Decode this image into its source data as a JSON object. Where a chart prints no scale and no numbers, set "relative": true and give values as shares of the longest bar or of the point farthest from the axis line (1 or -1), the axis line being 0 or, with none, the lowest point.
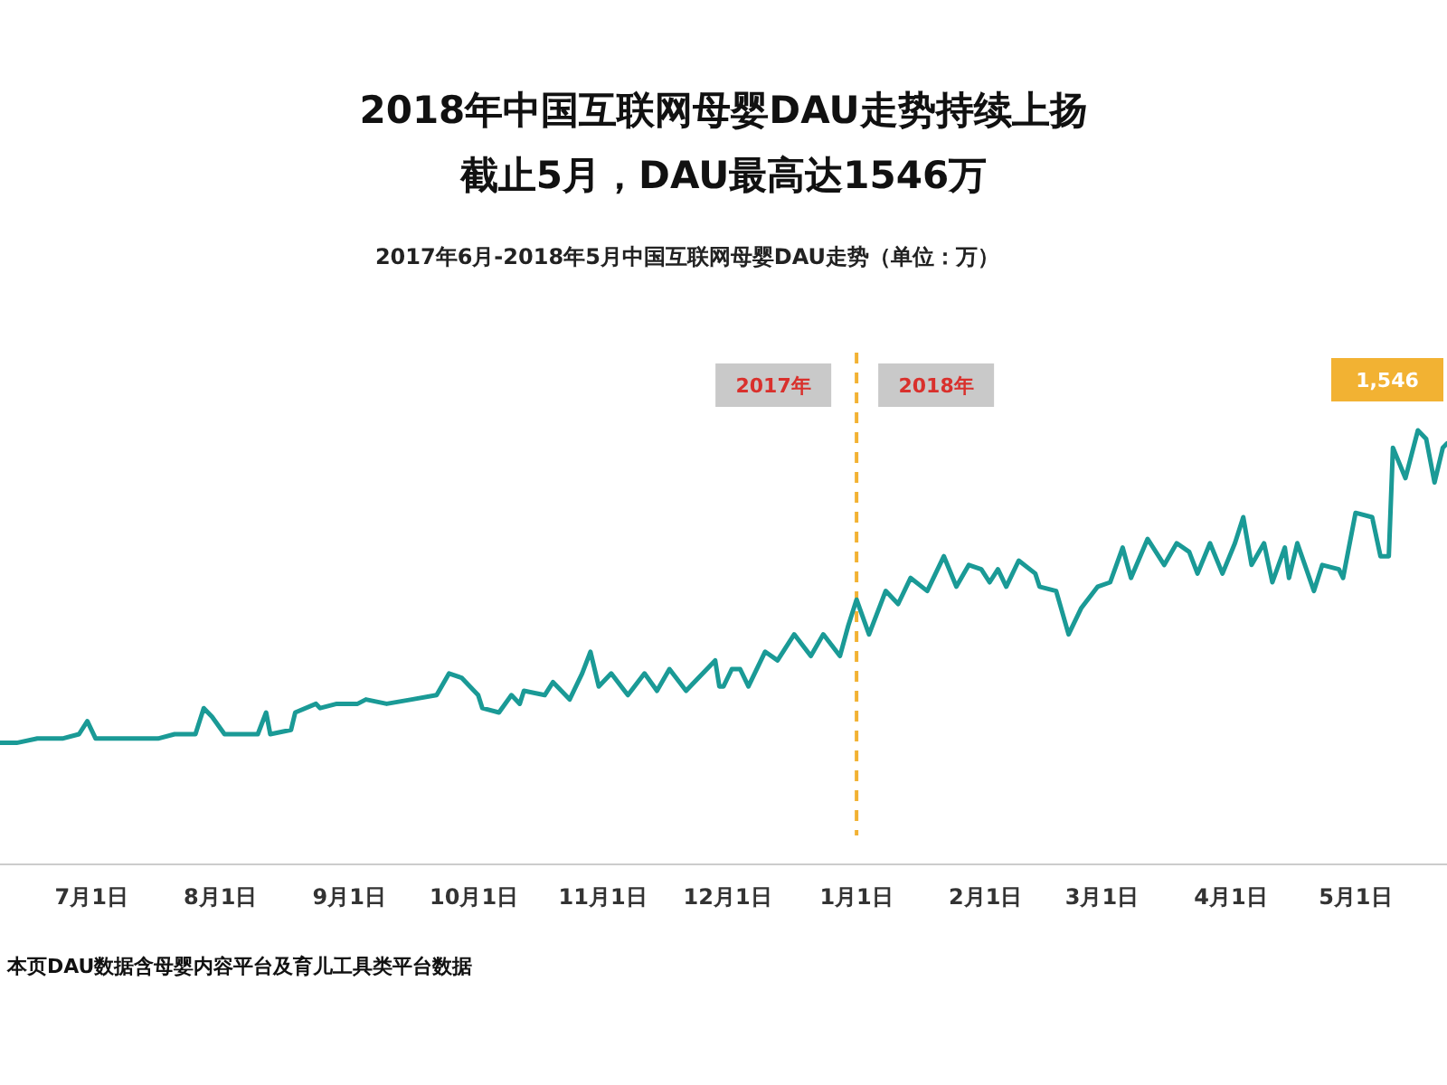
{
  "chart_data": {
    "type": "line",
    "relative": true,
    "title": "2018年中国互联网母婴DAU走势持续上扬",
    "subtitle": "截止5月，DAU最高达1546万",
    "x": [
      "2017-06-09",
      "2017-06-13",
      "2017-06-18",
      "2017-06-24",
      "2017-06-28",
      "2017-06-30",
      "2017-07-02",
      "2017-07-08",
      "2017-07-17",
      "2017-07-21",
      "2017-07-26",
      "2017-07-28",
      "2017-07-30",
      "2017-08-02",
      "2017-08-06",
      "2017-08-10",
      "2017-08-12",
      "2017-08-13",
      "2017-08-18",
      "2017-08-19",
      "2017-08-24",
      "2017-08-25",
      "2017-08-29",
      "2017-09-03",
      "2017-09-05",
      "2017-09-10",
      "2017-09-16",
      "2017-09-22",
      "2017-09-25",
      "2017-09-28",
      "2017-10-02",
      "2017-10-03",
      "2017-10-07",
      "2017-10-10",
      "2017-10-12",
      "2017-10-13",
      "2017-10-18",
      "2017-10-20",
      "2017-10-24",
      "2017-10-27",
      "2017-10-29",
      "2017-10-31",
      "2017-11-03",
      "2017-11-07",
      "2017-11-11",
      "2017-11-14",
      "2017-11-17",
      "2017-11-21",
      "2017-11-28",
      "2017-11-29",
      "2017-11-30",
      "2017-12-02",
      "2017-12-04",
      "2017-12-06",
      "2017-12-10",
      "2017-12-13",
      "2017-12-17",
      "2017-12-21",
      "2017-12-24",
      "2017-12-28",
      "2017-12-30",
      "2018-01-01",
      "2018-01-04",
      "2018-01-08",
      "2018-01-11",
      "2018-01-14",
      "2018-01-18",
      "2018-01-22",
      "2018-01-25",
      "2018-01-28",
      "2018-01-31",
      "2018-02-02",
      "2018-02-04",
      "2018-02-06",
      "2018-02-09",
      "2018-02-13",
      "2018-02-14",
      "2018-02-18",
      "2018-02-21",
      "2018-02-24",
      "2018-02-28",
      "2018-03-03",
      "2018-03-06",
      "2018-03-08",
      "2018-03-12",
      "2018-03-16",
      "2018-03-19",
      "2018-03-22",
      "2018-03-24",
      "2018-03-27",
      "2018-03-30",
      "2018-04-02",
      "2018-04-04",
      "2018-04-06",
      "2018-04-09",
      "2018-04-11",
      "2018-04-14",
      "2018-04-15",
      "2018-04-17",
      "2018-04-21",
      "2018-04-23",
      "2018-04-27",
      "2018-04-28",
      "2018-05-01",
      "2018-05-05",
      "2018-05-07",
      "2018-05-09",
      "2018-05-10",
      "2018-05-13",
      "2018-05-16",
      "2018-05-18",
      "2018-05-20",
      "2018-05-22",
      "2018-05-23"
    ],
    "series": [
      {
        "color": "#1a9a96",
        "values": [
          0.28,
          0.28,
          0.29,
          0.29,
          0.3,
          0.33,
          0.29,
          0.29,
          0.29,
          0.3,
          0.3,
          0.36,
          0.34,
          0.3,
          0.3,
          0.3,
          0.35,
          0.3,
          0.31,
          0.35,
          0.37,
          0.36,
          0.37,
          0.37,
          0.38,
          0.37,
          0.38,
          0.39,
          0.44,
          0.43,
          0.39,
          0.36,
          0.35,
          0.39,
          0.37,
          0.4,
          0.39,
          0.42,
          0.38,
          0.44,
          0.49,
          0.41,
          0.44,
          0.39,
          0.44,
          0.4,
          0.45,
          0.4,
          0.47,
          0.41,
          0.41,
          0.45,
          0.45,
          0.41,
          0.49,
          0.47,
          0.53,
          0.48,
          0.53,
          0.48,
          0.55,
          0.61,
          0.53,
          0.63,
          0.6,
          0.66,
          0.63,
          0.71,
          0.64,
          0.69,
          0.68,
          0.65,
          0.68,
          0.64,
          0.7,
          0.67,
          0.64,
          0.63,
          0.53,
          0.59,
          0.64,
          0.65,
          0.73,
          0.66,
          0.75,
          0.69,
          0.74,
          0.72,
          0.67,
          0.74,
          0.67,
          0.74,
          0.8,
          0.69,
          0.74,
          0.65,
          0.73,
          0.66,
          0.74,
          0.63,
          0.69,
          0.68,
          0.66,
          0.81,
          0.8,
          0.71,
          0.71,
          0.96,
          0.89,
          1.0,
          0.98,
          0.88,
          0.96,
          0.97
        ]
      }
    ],
    "xlim": [
      "2017-06-09",
      "2018-05-23"
    ],
    "xticks": [
      {
        "value": "2017-07-01",
        "label": "7月1日"
      },
      {
        "value": "2017-08-01",
        "label": "8月1日"
      },
      {
        "value": "2017-09-01",
        "label": "9月1日"
      },
      {
        "value": "2017-10-01",
        "label": "10月1日"
      },
      {
        "value": "2017-11-01",
        "label": "11月1日"
      },
      {
        "value": "2017-12-01",
        "label": "12月1日"
      },
      {
        "value": "2018-01-01",
        "label": "1月1日"
      },
      {
        "value": "2018-02-01",
        "label": "2月1日"
      },
      {
        "value": "2018-03-01",
        "label": "3月1日"
      },
      {
        "value": "2018-04-01",
        "label": "4月1日"
      },
      {
        "value": "2018-05-01",
        "label": "5月1日"
      }
    ],
    "ref_lines": [
      {
        "axis": "x",
        "value": "2018-01-01",
        "color": "#f2b233",
        "line_style": "dashed"
      }
    ],
    "annotations": [
      "2017年",
      "2018年",
      "2017年6月-2018年5月中国互联网母婴DAU走势（单位：万）",
      {
        "text": "1,546",
        "x": "2018-05-16",
        "y": 1.0
      },
      "本页DAU数据含母婴内容平台及育儿工具类平台数据"
    ],
    "grid": false,
    "marker": "none",
    "line_style": "solid"
  }
}
